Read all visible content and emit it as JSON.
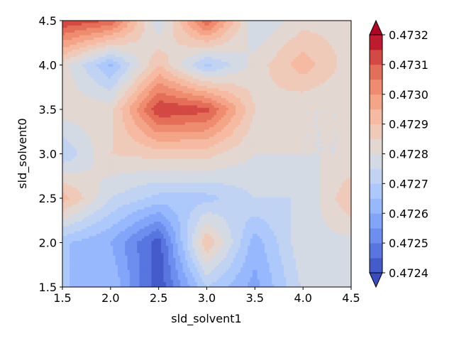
{
  "chart_data": {
    "type": "heatmap",
    "subtype": "filled-contour",
    "title": "",
    "xlabel": "sld_solvent1",
    "ylabel": "sld_solvent0",
    "xlim": [
      1.5,
      4.5
    ],
    "ylim": [
      1.5,
      4.5
    ],
    "x": [
      1.5,
      2.0,
      2.5,
      3.0,
      3.5,
      4.0,
      4.5
    ],
    "y": [
      1.5,
      2.0,
      2.5,
      3.0,
      3.5,
      4.0,
      4.5
    ],
    "x_ticks": [
      "1.5",
      "2.0",
      "2.5",
      "3.0",
      "3.5",
      "4.0",
      "4.5"
    ],
    "y_ticks": [
      "1.5",
      "2.0",
      "2.5",
      "3.0",
      "3.5",
      "4.0",
      "4.5"
    ],
    "z": [
      [
        0.47265,
        0.47265,
        0.47241,
        0.4727,
        0.47258,
        0.47276,
        0.47277
      ],
      [
        0.47266,
        0.4726,
        0.47242,
        0.4729,
        0.47262,
        0.47279,
        0.47278
      ],
      [
        0.47293,
        0.47275,
        0.47268,
        0.47268,
        0.47275,
        0.47275,
        0.4729
      ],
      [
        0.4727,
        0.47285,
        0.47287,
        0.47287,
        0.4728,
        0.4728,
        0.4728
      ],
      [
        0.47283,
        0.47283,
        0.47315,
        0.47312,
        0.47285,
        0.4728,
        0.4728
      ],
      [
        0.47283,
        0.47264,
        0.4729,
        0.47268,
        0.47282,
        0.47293,
        0.47282
      ],
      [
        0.47315,
        0.4731,
        0.47275,
        0.4731,
        0.47275,
        0.47283,
        0.47283
      ]
    ],
    "colorbar": {
      "levels": [
        0.4724,
        0.47245,
        0.4725,
        0.47255,
        0.4726,
        0.47265,
        0.4727,
        0.47275,
        0.4728,
        0.47285,
        0.4729,
        0.47295,
        0.473,
        0.47305,
        0.4731,
        0.47315,
        0.4732
      ],
      "tick_labels": [
        "0.4724",
        "0.4725",
        "0.4726",
        "0.4727",
        "0.4728",
        "0.4729",
        "0.4730",
        "0.4731",
        "0.4732"
      ],
      "extend": "both",
      "colormap": "coolwarm"
    },
    "grid": false,
    "legend": "none"
  }
}
